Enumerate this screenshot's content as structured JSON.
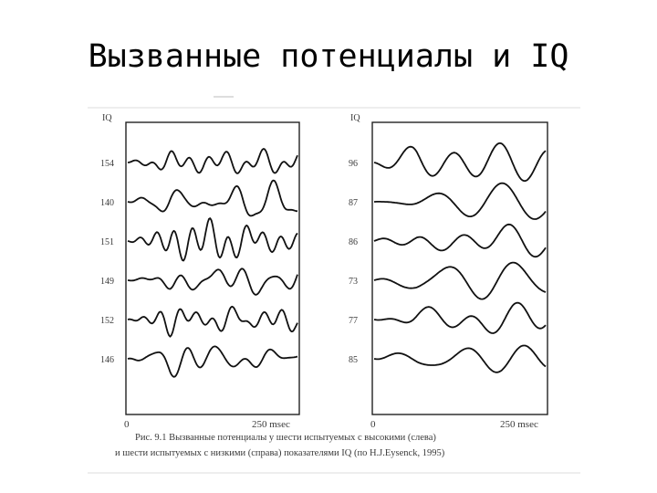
{
  "slide": {
    "title": "Вызванные потенциалы и IQ"
  },
  "figure": {
    "caption_line1": "Рис. 9.1 Вызванные потенциалы у шести испытуемых с высокими (слева)",
    "caption_line2": "и шести испытуемых с низкими (справа) показателями IQ (по H.J.Eysenck, 1995)",
    "colors": {
      "trace": "#111111",
      "frame": "#222222",
      "text": "#3a3a3a"
    }
  },
  "chart_data": [
    {
      "type": "line",
      "title": "",
      "ylabel": "IQ",
      "xlabel": "",
      "x_ticks": [
        "0",
        "250 msec"
      ],
      "x_range_msec": [
        0,
        300
      ],
      "series": [
        {
          "name": "154"
        },
        {
          "name": "140"
        },
        {
          "name": "151"
        },
        {
          "name": "149"
        },
        {
          "name": "152"
        },
        {
          "name": "146"
        }
      ]
    },
    {
      "type": "line",
      "title": "",
      "ylabel": "IQ",
      "xlabel": "",
      "x_ticks": [
        "0",
        "250 msec"
      ],
      "x_range_msec": [
        0,
        300
      ],
      "series": [
        {
          "name": "96"
        },
        {
          "name": "87"
        },
        {
          "name": "86"
        },
        {
          "name": "73"
        },
        {
          "name": "77"
        },
        {
          "name": "85"
        }
      ]
    }
  ]
}
